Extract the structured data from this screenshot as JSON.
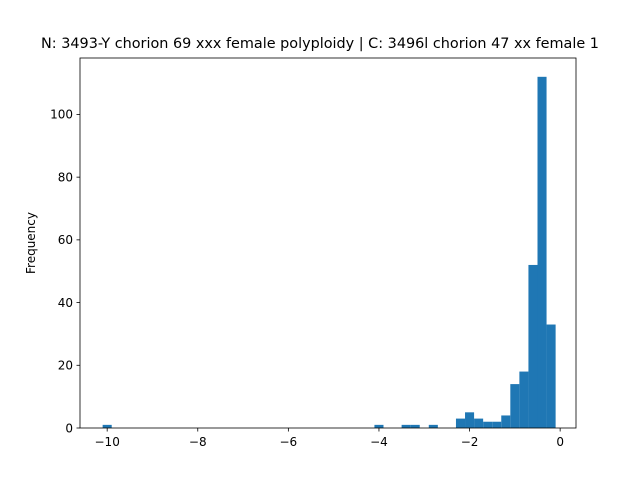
{
  "chart_data": {
    "type": "bar",
    "title": "N: 3493-Y chorion 69 xxx female polyploidy | C: 3496l chorion 47 xx female 1",
    "xlabel": "",
    "ylabel": "Frequency",
    "xlim": [
      -10.6,
      0.35
    ],
    "ylim": [
      0,
      118
    ],
    "xticks": [
      -10,
      -8,
      -6,
      -4,
      -2,
      0
    ],
    "xtick_labels": [
      "−10",
      "−8",
      "−6",
      "−4",
      "−2",
      "0"
    ],
    "yticks": [
      0,
      20,
      40,
      60,
      80,
      100
    ],
    "ytick_labels": [
      "0",
      "20",
      "40",
      "60",
      "80",
      "100"
    ],
    "grid": false,
    "bar_color": "#1f77b4",
    "bin_edges": [
      -10.1,
      -9.9,
      -9.7,
      -9.5,
      -9.3,
      -9.1,
      -8.9,
      -8.7,
      -8.5,
      -8.3,
      -8.1,
      -7.9,
      -7.7,
      -7.5,
      -7.3,
      -7.1,
      -6.9,
      -6.7,
      -6.5,
      -6.3,
      -6.1,
      -5.9,
      -5.7,
      -5.5,
      -5.3,
      -5.1,
      -4.9,
      -4.7,
      -4.5,
      -4.3,
      -4.1,
      -3.9,
      -3.7,
      -3.5,
      -3.3,
      -3.1,
      -2.9,
      -2.7,
      -2.5,
      -2.3,
      -2.1,
      -1.9,
      -1.7,
      -1.5,
      -1.3,
      -1.1,
      -0.9,
      -0.7,
      -0.5,
      -0.3,
      -0.1
    ],
    "counts": [
      1,
      0,
      0,
      0,
      0,
      0,
      0,
      0,
      0,
      0,
      0,
      0,
      0,
      0,
      0,
      0,
      0,
      0,
      0,
      0,
      0,
      0,
      0,
      0,
      0,
      0,
      0,
      0,
      0,
      0,
      1,
      0,
      0,
      1,
      1,
      0,
      1,
      0,
      0,
      3,
      5,
      3,
      2,
      2,
      4,
      14,
      18,
      52,
      112,
      33
    ]
  }
}
